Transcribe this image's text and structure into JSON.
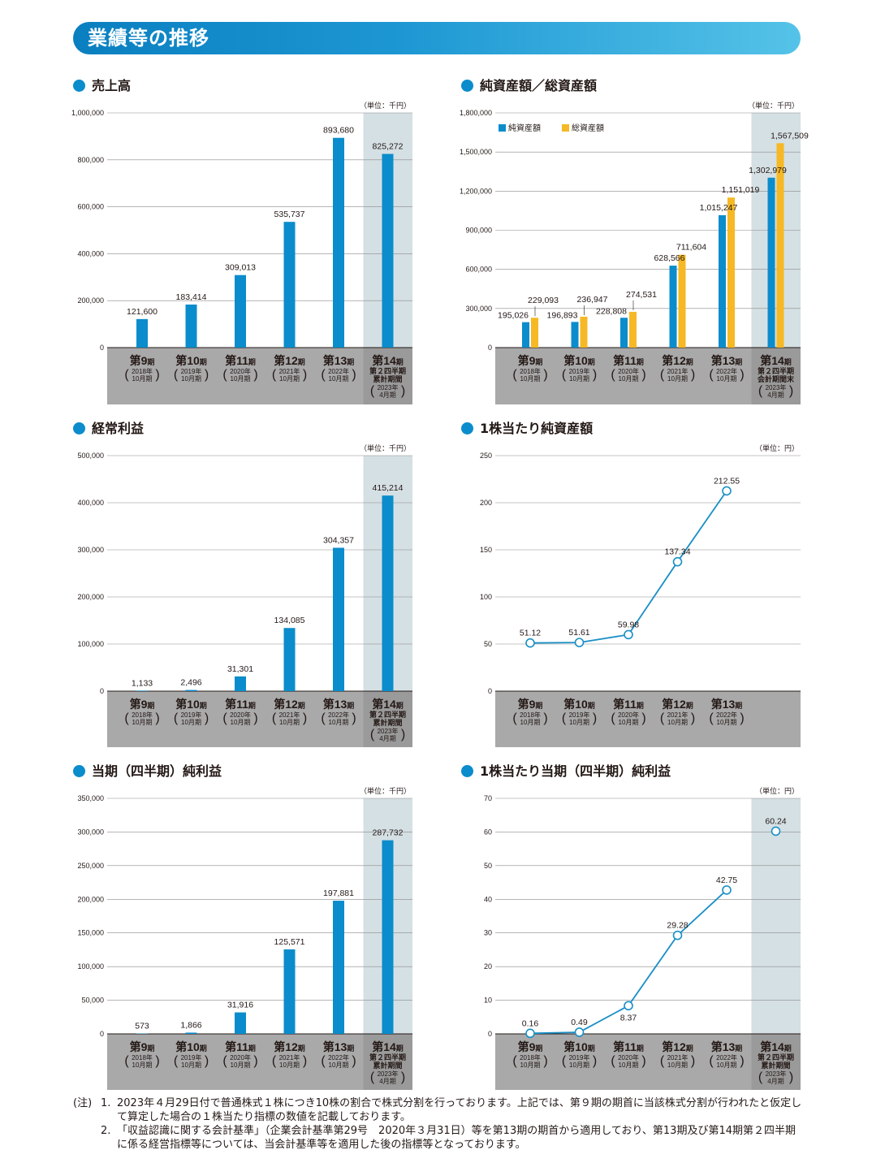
{
  "header": {
    "title": "業績等の推移"
  },
  "colors": {
    "bar": "#0b8ccc",
    "bar2": "#f6b824",
    "line": "#1a8fc6",
    "highlight": "#d5e0e4",
    "label_band": "#a9a9a9",
    "banner": "#1d97d3"
  },
  "charts": [
    {
      "title": "売上高",
      "unit": "（単位：千円）",
      "type": "bar",
      "ylim": [
        0,
        1000000
      ],
      "yticks": [
        "1,000,000",
        "800,000",
        "600,000",
        "400,000",
        "200,000",
        "0"
      ],
      "periods": [
        {
          "name": "第9",
          "sub": [
            "2018年",
            "10月期"
          ]
        },
        {
          "name": "第10",
          "sub": [
            "2019年",
            "10月期"
          ]
        },
        {
          "name": "第11",
          "sub": [
            "2020年",
            "10月期"
          ]
        },
        {
          "name": "第12",
          "sub": [
            "2021年",
            "10月期"
          ]
        },
        {
          "name": "第13",
          "sub": [
            "2022年",
            "10月期"
          ]
        },
        {
          "name": "第14",
          "extra": [
            "第２四半期",
            "累計期間"
          ],
          "sub": [
            "2023年",
            "4月期"
          ]
        }
      ],
      "values": [
        121600,
        183414,
        309013,
        535737,
        893680,
        825272
      ],
      "labels": [
        "121,600",
        "183,414",
        "309,013",
        "535,737",
        "893,680",
        "825,272"
      ]
    },
    {
      "title": "純資産額／総資産額",
      "unit": "（単位：千円）",
      "type": "bar2",
      "ylim": [
        0,
        1800000
      ],
      "yticks": [
        "1,800,000",
        "1,500,000",
        "1,200,000",
        "900,000",
        "600,000",
        "300,000",
        "0"
      ],
      "legend": [
        "純資産額",
        "総資産額"
      ],
      "periods": [
        {
          "name": "第9",
          "sub": [
            "2018年",
            "10月期"
          ]
        },
        {
          "name": "第10",
          "sub": [
            "2019年",
            "10月期"
          ]
        },
        {
          "name": "第11",
          "sub": [
            "2020年",
            "10月期"
          ]
        },
        {
          "name": "第12",
          "sub": [
            "2021年",
            "10月期"
          ]
        },
        {
          "name": "第13",
          "sub": [
            "2022年",
            "10月期"
          ]
        },
        {
          "name": "第14",
          "extra": [
            "第２四半期",
            "会計期間末"
          ],
          "sub": [
            "2023年",
            "4月期"
          ]
        }
      ],
      "values": [
        195026,
        196893,
        228808,
        628566,
        1015247,
        1302979
      ],
      "values2": [
        229093,
        236947,
        274531,
        711604,
        1151019,
        1567509
      ],
      "labels": [
        "195,026",
        "196,893",
        "228,808",
        "628,566",
        "1,015,247",
        "1,302,979"
      ],
      "labels2": [
        "229,093",
        "236,947",
        "274,531",
        "711,604",
        "1,151,019",
        "1,567,509"
      ]
    },
    {
      "title": "経常利益",
      "unit": "（単位：千円）",
      "type": "bar",
      "ylim": [
        0,
        500000
      ],
      "yticks": [
        "500,000",
        "400,000",
        "300,000",
        "200,000",
        "100,000",
        "0"
      ],
      "periods": [
        {
          "name": "第9",
          "sub": [
            "2018年",
            "10月期"
          ]
        },
        {
          "name": "第10",
          "sub": [
            "2019年",
            "10月期"
          ]
        },
        {
          "name": "第11",
          "sub": [
            "2020年",
            "10月期"
          ]
        },
        {
          "name": "第12",
          "sub": [
            "2021年",
            "10月期"
          ]
        },
        {
          "name": "第13",
          "sub": [
            "2022年",
            "10月期"
          ]
        },
        {
          "name": "第14",
          "extra": [
            "第２四半期",
            "累計期間"
          ],
          "sub": [
            "2023年",
            "4月期"
          ]
        }
      ],
      "values": [
        1133,
        2496,
        31301,
        134085,
        304357,
        415214
      ],
      "labels": [
        "1,133",
        "2,496",
        "31,301",
        "134,085",
        "304,357",
        "415,214"
      ]
    },
    {
      "title": "1株当たり純資産額",
      "unit": "（単位：円）",
      "type": "line",
      "ylim": [
        0,
        250
      ],
      "yticks": [
        "250",
        "200",
        "150",
        "100",
        "50",
        "0"
      ],
      "periods": [
        {
          "name": "第9",
          "sub": [
            "2018年",
            "10月期"
          ]
        },
        {
          "name": "第10",
          "sub": [
            "2019年",
            "10月期"
          ]
        },
        {
          "name": "第11",
          "sub": [
            "2020年",
            "10月期"
          ]
        },
        {
          "name": "第12",
          "sub": [
            "2021年",
            "10月期"
          ]
        },
        {
          "name": "第13",
          "sub": [
            "2022年",
            "10月期"
          ]
        }
      ],
      "values": [
        51.12,
        51.61,
        59.98,
        137.34,
        212.55
      ],
      "labels": [
        "51.12",
        "51.61",
        "59.98",
        "137.34",
        "212.55"
      ]
    },
    {
      "title": "当期（四半期）純利益",
      "unit": "（単位：千円）",
      "type": "bar",
      "ylim": [
        0,
        350000
      ],
      "yticks": [
        "350,000",
        "300,000",
        "250,000",
        "200,000",
        "150,000",
        "100,000",
        "50,000",
        "0"
      ],
      "periods": [
        {
          "name": "第9",
          "sub": [
            "2018年",
            "10月期"
          ]
        },
        {
          "name": "第10",
          "sub": [
            "2019年",
            "10月期"
          ]
        },
        {
          "name": "第11",
          "sub": [
            "2020年",
            "10月期"
          ]
        },
        {
          "name": "第12",
          "sub": [
            "2021年",
            "10月期"
          ]
        },
        {
          "name": "第13",
          "sub": [
            "2022年",
            "10月期"
          ]
        },
        {
          "name": "第14",
          "extra": [
            "第２四半期",
            "累計期間"
          ],
          "sub": [
            "2023年",
            "4月期"
          ]
        }
      ],
      "values": [
        573,
        1866,
        31916,
        125571,
        197881,
        287732
      ],
      "labels": [
        "573",
        "1,866",
        "31,916",
        "125,571",
        "197,881",
        "287,732"
      ]
    },
    {
      "title": "1株当たり当期（四半期）純利益",
      "unit": "（単位：円）",
      "type": "line",
      "ylim": [
        0,
        70
      ],
      "yticks": [
        "70",
        "60",
        "50",
        "40",
        "30",
        "20",
        "10",
        "0"
      ],
      "periods": [
        {
          "name": "第9",
          "sub": [
            "2018年",
            "10月期"
          ]
        },
        {
          "name": "第10",
          "sub": [
            "2019年",
            "10月期"
          ]
        },
        {
          "name": "第11",
          "sub": [
            "2020年",
            "10月期"
          ]
        },
        {
          "name": "第12",
          "sub": [
            "2021年",
            "10月期"
          ]
        },
        {
          "name": "第13",
          "sub": [
            "2022年",
            "10月期"
          ]
        },
        {
          "name": "第14",
          "extra": [
            "第２四半期",
            "累計期間"
          ],
          "sub": [
            "2023年",
            "4月期"
          ]
        }
      ],
      "values": [
        0.16,
        0.49,
        8.37,
        29.28,
        42.75,
        60.24
      ],
      "labels": [
        "0.16",
        "0.49",
        "8.37",
        "29.28",
        "42.75",
        "60.24"
      ],
      "connected_points": 5
    }
  ],
  "period_suffix": "期",
  "notes": {
    "prefix": "(注)",
    "items": [
      {
        "num": "1.",
        "text": "2023年４月29日付で普通株式１株につき10株の割合で株式分割を行っております。上記では、第９期の期首に当該株式分割が行われたと仮定して算定した場合の１株当たり指標の数値を記載しております。"
      },
      {
        "num": "2.",
        "text": "「収益認識に関する会計基準」（企業会計基準第29号　2020年３月31日）等を第13期の期首から適用しており、第13期及び第14期第２四半期に係る経営指標等については、当会計基準等を適用した後の指標等となっております。"
      }
    ]
  }
}
